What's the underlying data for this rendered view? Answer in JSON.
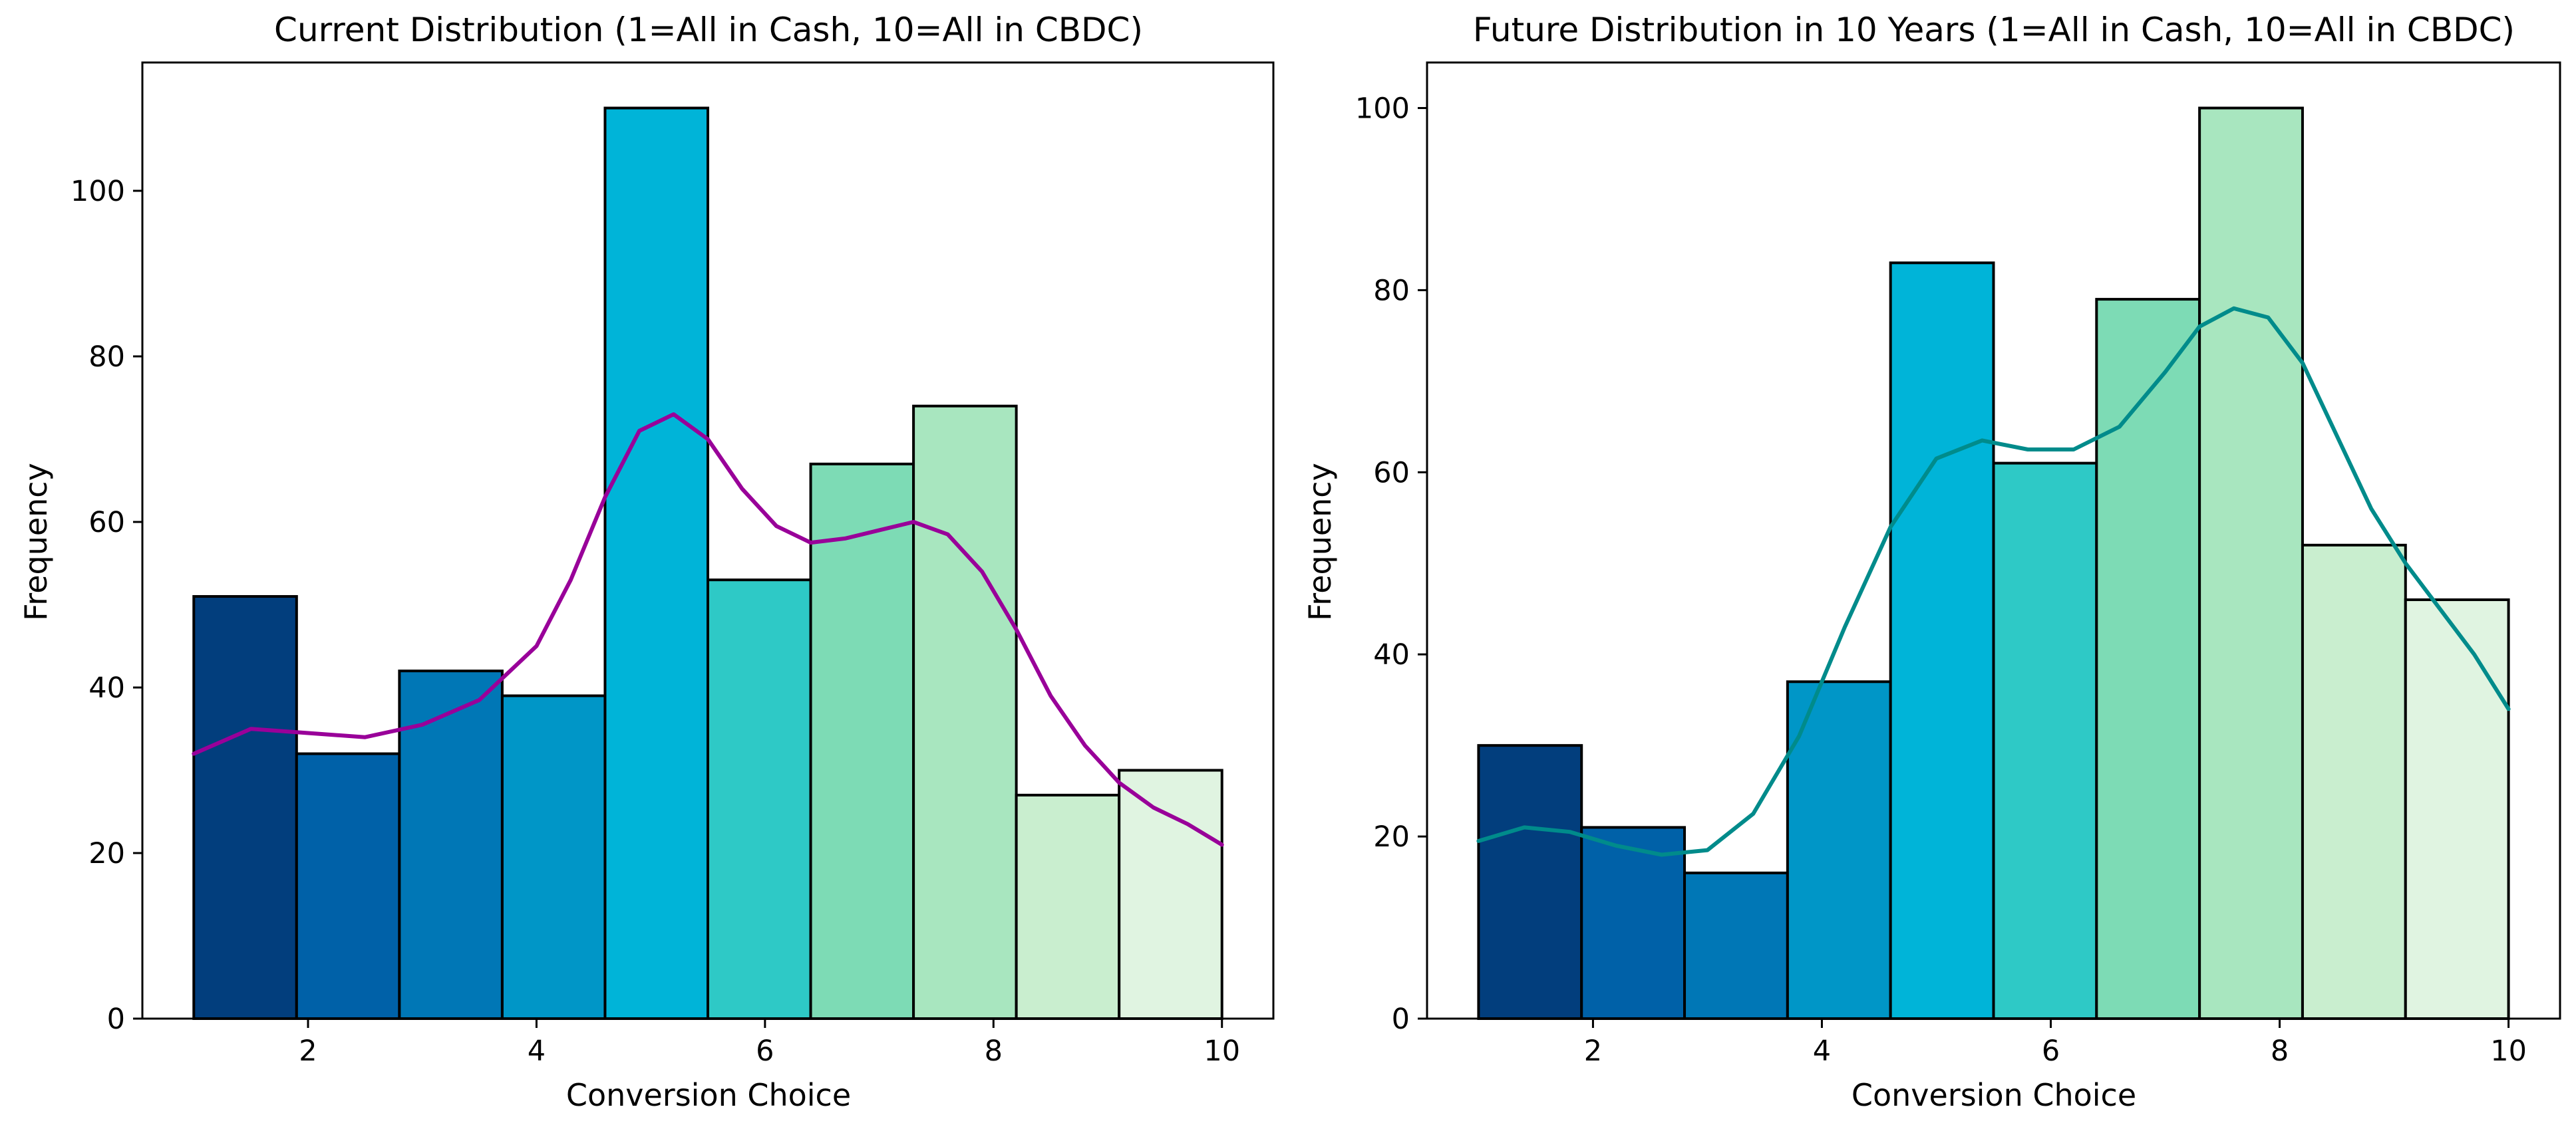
{
  "chart_data": [
    {
      "type": "bar",
      "title": "Current Distribution (1=All in Cash, 10=All in CBDC)",
      "xlabel": "Conversion Choice",
      "ylabel": "Frequency",
      "xlim": [
        0.55,
        10.45
      ],
      "ylim": [
        0,
        115.5
      ],
      "xticks": [
        2,
        4,
        6,
        8,
        10
      ],
      "yticks": [
        0,
        20,
        40,
        60,
        80,
        100
      ],
      "bin_edges": [
        1,
        1.9,
        2.8,
        3.7,
        4.6,
        5.5,
        6.4,
        7.3,
        8.2,
        9.1,
        10
      ],
      "values": [
        51,
        32,
        42,
        39,
        110,
        53,
        67,
        74,
        27,
        30
      ],
      "bar_colors": [
        "#023e7d",
        "#0061a8",
        "#0077b6",
        "#0096c7",
        "#00b4d8",
        "#2ec9c6",
        "#7ddbb5",
        "#a8e6bf",
        "#c9eecf",
        "#e0f4e1"
      ],
      "kde": {
        "color": "#990099",
        "x": [
          1,
          1.5,
          2,
          2.5,
          3,
          3.5,
          4,
          4.3,
          4.6,
          4.9,
          5.2,
          5.5,
          5.8,
          6.1,
          6.4,
          6.7,
          7,
          7.3,
          7.6,
          7.9,
          8.2,
          8.5,
          8.8,
          9.1,
          9.4,
          9.7,
          10
        ],
        "y": [
          32,
          35,
          34.5,
          34,
          35.5,
          38.5,
          45,
          53,
          63,
          71,
          73,
          70,
          64,
          59.5,
          57.5,
          58,
          59,
          60,
          58.5,
          54,
          47,
          39,
          33,
          28.5,
          25.5,
          23.5,
          21
        ]
      },
      "grid": false
    },
    {
      "type": "bar",
      "title": "Future Distribution in 10 Years (1=All in Cash, 10=All in CBDC)",
      "xlabel": "Conversion Choice",
      "ylabel": "Frequency",
      "xlim": [
        0.55,
        10.45
      ],
      "ylim": [
        0,
        105
      ],
      "xticks": [
        2,
        4,
        6,
        8,
        10
      ],
      "yticks": [
        0,
        20,
        40,
        60,
        80,
        100
      ],
      "bin_edges": [
        1,
        1.9,
        2.8,
        3.7,
        4.6,
        5.5,
        6.4,
        7.3,
        8.2,
        9.1,
        10
      ],
      "values": [
        30,
        21,
        16,
        37,
        83,
        61,
        79,
        100,
        52,
        46
      ],
      "bar_colors": [
        "#023e7d",
        "#0061a8",
        "#0077b6",
        "#0096c7",
        "#00b4d8",
        "#2ec9c6",
        "#7ddbb5",
        "#a8e6bf",
        "#c9eecf",
        "#e0f4e1"
      ],
      "kde": {
        "color": "#008b8b",
        "x": [
          1,
          1.4,
          1.8,
          2.2,
          2.6,
          3,
          3.4,
          3.8,
          4.2,
          4.6,
          5,
          5.4,
          5.8,
          6.2,
          6.6,
          7,
          7.3,
          7.6,
          7.9,
          8.2,
          8.5,
          8.8,
          9.1,
          9.4,
          9.7,
          10
        ],
        "y": [
          19.5,
          21,
          20.5,
          19,
          18,
          18.5,
          22.5,
          31,
          43,
          54,
          61.5,
          63.5,
          62.5,
          62.5,
          65,
          71,
          76,
          78,
          77,
          72,
          64,
          56,
          50,
          45,
          40,
          34
        ]
      },
      "grid": false
    }
  ]
}
